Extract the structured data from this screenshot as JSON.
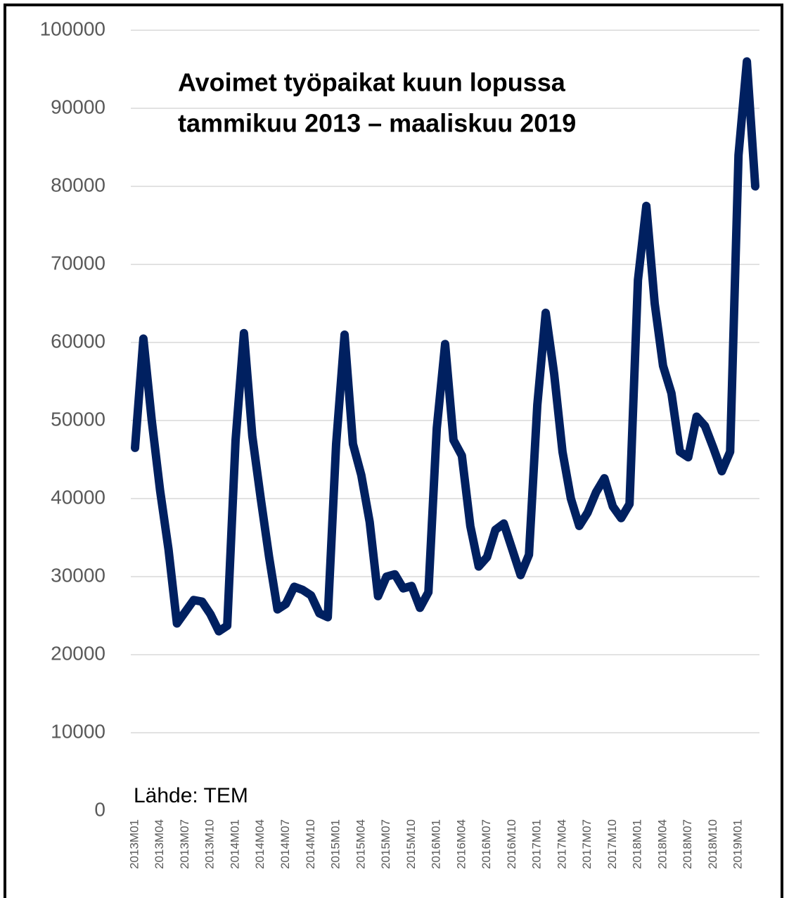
{
  "chart_data": {
    "type": "line",
    "title": [
      "Avoimet työpaikat kuun lopussa",
      "tammikuu 2013 – maaliskuu 2019"
    ],
    "annotation": "Lähde: TEM",
    "categories": [
      "2013M01",
      null,
      null,
      "2013M04",
      null,
      null,
      "2013M07",
      null,
      null,
      "2013M10",
      null,
      null,
      "2014M01",
      null,
      null,
      "2014M04",
      null,
      null,
      "2014M07",
      null,
      null,
      "2014M10",
      null,
      null,
      "2015M01",
      null,
      null,
      "2015M04",
      null,
      null,
      "2015M07",
      null,
      null,
      "2015M10",
      null,
      null,
      "2016M01",
      null,
      null,
      "2016M04",
      null,
      null,
      "2016M07",
      null,
      null,
      "2016M10",
      null,
      null,
      "2017M01",
      null,
      null,
      "2017M04",
      null,
      null,
      "2017M07",
      null,
      null,
      "2017M10",
      null,
      null,
      "2018M01",
      null,
      null,
      "2018M04",
      null,
      null,
      "2018M07",
      null,
      null,
      "2018M10",
      null,
      null,
      "2019M01",
      null,
      null
    ],
    "values": [
      46500,
      60500,
      50000,
      41000,
      33500,
      24000,
      25500,
      27000,
      26800,
      25200,
      23000,
      23700,
      47500,
      61200,
      48000,
      40000,
      32500,
      25800,
      26500,
      28700,
      28300,
      27600,
      25300,
      24800,
      47000,
      61000,
      47000,
      43000,
      37000,
      27500,
      30000,
      30300,
      28500,
      28800,
      26000,
      28000,
      49000,
      59800,
      47500,
      45500,
      36500,
      31300,
      32500,
      36000,
      36800,
      33500,
      30200,
      32800,
      52000,
      63800,
      56000,
      46000,
      40000,
      36500,
      38200,
      40800,
      42600,
      39000,
      37500,
      39300,
      68000,
      77500,
      65000,
      57000,
      53500,
      46000,
      45300,
      50500,
      49300,
      46500,
      43500,
      46000,
      84000,
      96000,
      80000
    ],
    "color": "#002060",
    "ylim": [
      0,
      100000
    ],
    "yticks": [
      0,
      10000,
      20000,
      30000,
      40000,
      50000,
      60000,
      70000,
      80000,
      90000,
      100000
    ],
    "grid": true
  }
}
